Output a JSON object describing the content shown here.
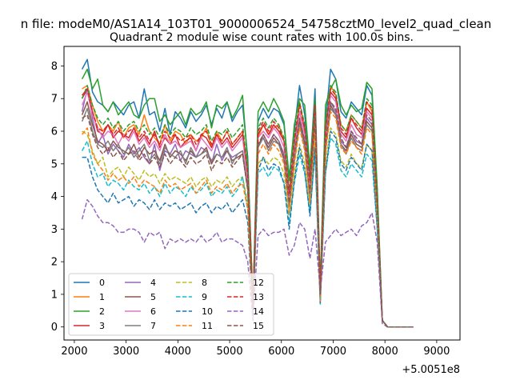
{
  "chart_data": {
    "type": "line",
    "suptitle": "n file: modeM0/AS1A14_103T01_9000006524_54758cztM0_level2_quad_clean",
    "title": "Quadrant 2 module wise count rates with 100.0s bins.",
    "xlabel": "",
    "ylabel": "",
    "x_offset_label": "+5.0051e8",
    "xlim": [
      1800,
      9450
    ],
    "ylim": [
      -0.4,
      8.6
    ],
    "x_ticks": [
      2000,
      3000,
      4000,
      5000,
      6000,
      7000,
      8000,
      9000
    ],
    "y_ticks": [
      0,
      1,
      2,
      3,
      4,
      5,
      6,
      7,
      8
    ],
    "grid": false,
    "legend": {
      "position": "lower-left",
      "ncol": 4
    },
    "x_start": 2150,
    "x_step": 100,
    "series": [
      {
        "name": "0",
        "color": "#1f77b4",
        "style": "solid",
        "values": [
          7.9,
          8.2,
          7.2,
          6.9,
          6.8,
          6.6,
          6.9,
          6.7,
          6.5,
          6.8,
          6.9,
          6.4,
          7.3,
          6.5,
          6.6,
          6.0,
          6.7,
          5.9,
          6.6,
          6.4,
          6.1,
          6.6,
          6.3,
          6.5,
          6.8,
          6.2,
          6.7,
          6.4,
          6.9,
          6.3,
          6.6,
          6.8,
          5.2,
          0.7,
          6.3,
          6.7,
          6.4,
          6.7,
          6.6,
          6.2,
          4.6,
          6.0,
          7.4,
          6.5,
          4.8,
          7.3,
          1.2,
          6.3,
          7.9,
          7.6,
          6.6,
          6.4,
          6.9,
          6.7,
          6.5,
          7.4,
          7.1,
          4.2,
          0.2,
          0.0,
          0.0,
          0.0,
          0.0,
          0.0,
          0.0
        ]
      },
      {
        "name": "1",
        "color": "#ff7f0e",
        "style": "solid",
        "values": [
          7.3,
          7.4,
          6.8,
          6.3,
          6.0,
          6.2,
          6.0,
          6.3,
          5.8,
          6.1,
          6.2,
          5.9,
          6.5,
          6.0,
          5.8,
          5.6,
          6.2,
          5.7,
          6.0,
          5.9,
          5.6,
          5.9,
          5.7,
          5.8,
          6.1,
          5.5,
          6.0,
          5.7,
          6.0,
          5.6,
          5.8,
          6.0,
          4.8,
          0.6,
          5.8,
          6.2,
          5.9,
          6.1,
          6.2,
          5.7,
          4.1,
          5.6,
          6.9,
          6.1,
          4.4,
          6.8,
          1.0,
          5.9,
          7.4,
          7.1,
          6.2,
          6.0,
          6.5,
          6.3,
          6.1,
          6.9,
          6.6,
          3.9,
          0.2,
          0.0,
          0.0,
          0.0,
          0.0,
          0.0,
          0.0
        ]
      },
      {
        "name": "2",
        "color": "#2ca02c",
        "style": "solid",
        "values": [
          7.6,
          7.9,
          7.3,
          7.6,
          6.8,
          6.6,
          6.9,
          6.5,
          6.7,
          6.9,
          6.5,
          6.4,
          6.8,
          7.0,
          7.0,
          6.3,
          6.5,
          6.2,
          6.4,
          6.6,
          6.2,
          6.7,
          6.5,
          6.6,
          6.9,
          6.1,
          6.8,
          6.7,
          6.9,
          6.4,
          6.7,
          7.1,
          5.0,
          0.8,
          6.6,
          6.9,
          6.6,
          7.0,
          6.7,
          6.3,
          4.5,
          6.2,
          7.0,
          6.8,
          4.9,
          7.0,
          1.3,
          6.8,
          7.3,
          7.6,
          6.8,
          6.5,
          6.8,
          6.6,
          6.7,
          7.5,
          7.3,
          4.3,
          0.2,
          0.0,
          0.0,
          0.0,
          0.0,
          0.0,
          0.0
        ]
      },
      {
        "name": "3",
        "color": "#d62728",
        "style": "solid",
        "values": [
          7.0,
          7.3,
          6.6,
          6.0,
          5.9,
          6.2,
          5.8,
          6.0,
          5.9,
          5.8,
          6.1,
          5.7,
          5.9,
          5.6,
          6.0,
          5.5,
          5.8,
          5.6,
          5.9,
          5.5,
          5.7,
          5.8,
          5.4,
          5.9,
          5.8,
          5.5,
          5.9,
          5.6,
          5.8,
          5.5,
          5.7,
          5.9,
          4.6,
          0.6,
          5.9,
          6.2,
          5.9,
          6.2,
          6.0,
          5.7,
          4.0,
          5.5,
          6.6,
          6.0,
          4.4,
          6.6,
          1.0,
          5.9,
          7.2,
          7.0,
          6.0,
          5.8,
          6.4,
          6.1,
          5.9,
          6.7,
          6.5,
          3.8,
          0.2,
          0.0,
          0.0,
          0.0,
          0.0,
          0.0,
          0.0
        ]
      },
      {
        "name": "4",
        "color": "#9467bd",
        "style": "solid",
        "values": [
          6.6,
          7.3,
          6.4,
          5.6,
          5.9,
          5.3,
          5.6,
          5.4,
          5.2,
          5.6,
          5.3,
          5.5,
          5.2,
          5.0,
          5.6,
          4.8,
          5.4,
          5.3,
          5.6,
          5.1,
          5.4,
          5.3,
          5.2,
          5.5,
          5.4,
          5.0,
          5.6,
          5.1,
          5.4,
          5.2,
          5.3,
          5.4,
          4.3,
          0.5,
          5.5,
          5.9,
          5.6,
          5.9,
          5.7,
          5.3,
          3.8,
          5.2,
          6.4,
          5.7,
          4.1,
          6.4,
          0.9,
          5.6,
          6.9,
          6.6,
          5.7,
          5.5,
          6.0,
          5.7,
          5.6,
          6.4,
          6.2,
          3.6,
          0.2,
          0.0,
          0.0,
          0.0,
          0.0,
          0.0,
          0.0
        ]
      },
      {
        "name": "5",
        "color": "#8c564b",
        "style": "solid",
        "values": [
          6.5,
          6.9,
          6.2,
          5.7,
          5.6,
          5.4,
          5.7,
          5.5,
          5.4,
          5.3,
          5.6,
          5.2,
          5.5,
          5.3,
          5.4,
          5.1,
          5.6,
          5.2,
          5.4,
          5.3,
          5.1,
          5.4,
          5.2,
          5.3,
          5.5,
          5.0,
          5.3,
          5.2,
          5.4,
          5.1,
          5.2,
          5.3,
          4.2,
          0.5,
          5.6,
          5.8,
          5.5,
          5.8,
          5.6,
          5.2,
          3.8,
          5.1,
          6.3,
          5.6,
          4.1,
          6.3,
          0.9,
          5.5,
          6.8,
          6.5,
          5.6,
          5.4,
          5.9,
          5.6,
          5.5,
          6.3,
          6.1,
          3.5,
          0.2,
          0.0,
          0.0,
          0.0,
          0.0,
          0.0,
          0.0
        ]
      },
      {
        "name": "6",
        "color": "#e377c2",
        "style": "solid",
        "values": [
          6.8,
          7.2,
          6.5,
          6.1,
          5.8,
          6.0,
          5.9,
          5.6,
          5.9,
          5.7,
          6.0,
          5.6,
          5.8,
          5.5,
          5.7,
          5.4,
          5.9,
          5.6,
          5.7,
          5.5,
          5.6,
          5.7,
          5.4,
          5.8,
          5.6,
          5.4,
          5.8,
          5.5,
          5.7,
          5.4,
          5.6,
          5.8,
          4.5,
          0.6,
          5.8,
          6.0,
          5.8,
          6.1,
          5.9,
          5.5,
          3.9,
          5.4,
          6.6,
          5.9,
          4.3,
          6.5,
          1.0,
          5.7,
          7.1,
          6.9,
          5.9,
          5.7,
          6.2,
          5.9,
          5.8,
          6.6,
          6.4,
          3.8,
          0.2,
          0.0,
          0.0,
          0.0,
          0.0,
          0.0,
          0.0
        ]
      },
      {
        "name": "7",
        "color": "#7f7f7f",
        "style": "solid",
        "values": [
          6.3,
          6.7,
          6.0,
          5.6,
          5.5,
          5.7,
          5.4,
          5.6,
          5.3,
          5.5,
          5.2,
          5.4,
          5.6,
          5.1,
          5.3,
          5.0,
          5.5,
          5.3,
          5.2,
          5.4,
          5.0,
          5.5,
          5.2,
          5.3,
          5.4,
          5.1,
          5.3,
          5.2,
          5.5,
          5.0,
          5.3,
          5.4,
          4.2,
          0.5,
          5.5,
          5.8,
          5.4,
          5.7,
          5.6,
          5.1,
          3.7,
          5.1,
          6.2,
          5.5,
          4.0,
          6.2,
          0.9,
          5.4,
          6.7,
          6.5,
          5.6,
          5.3,
          5.8,
          5.5,
          5.4,
          6.2,
          6.0,
          3.5,
          0.2,
          0.0,
          0.0,
          0.0,
          0.0,
          0.0,
          0.0
        ]
      },
      {
        "name": "8",
        "color": "#bcbd22",
        "style": "dashed",
        "values": [
          6.0,
          5.9,
          5.4,
          5.0,
          5.2,
          4.6,
          4.8,
          4.9,
          4.6,
          4.9,
          4.7,
          4.5,
          4.8,
          4.6,
          4.7,
          4.4,
          4.7,
          4.5,
          4.6,
          4.5,
          4.4,
          4.6,
          4.3,
          4.5,
          4.6,
          4.3,
          4.5,
          4.4,
          4.6,
          4.3,
          4.5,
          4.6,
          3.8,
          0.4,
          5.0,
          5.2,
          5.0,
          5.2,
          5.1,
          4.7,
          3.4,
          4.7,
          5.6,
          5.0,
          3.7,
          5.6,
          0.8,
          5.0,
          6.1,
          5.9,
          5.1,
          4.9,
          5.3,
          5.0,
          4.9,
          5.6,
          5.4,
          3.2,
          0.2,
          0.0,
          0.0,
          0.0,
          0.0,
          0.0,
          0.0
        ]
      },
      {
        "name": "9",
        "color": "#17becf",
        "style": "dashed",
        "values": [
          5.4,
          5.7,
          5.0,
          4.6,
          4.7,
          4.3,
          4.5,
          4.4,
          4.2,
          4.5,
          4.3,
          4.2,
          4.4,
          4.1,
          4.3,
          4.0,
          4.4,
          4.1,
          4.3,
          4.2,
          4.0,
          4.3,
          4.1,
          4.2,
          4.4,
          4.0,
          4.2,
          4.1,
          4.3,
          4.0,
          4.2,
          4.6,
          3.6,
          0.4,
          4.7,
          4.9,
          4.6,
          4.9,
          4.8,
          4.4,
          3.2,
          4.4,
          5.3,
          4.7,
          3.5,
          5.3,
          0.7,
          4.7,
          5.8,
          5.6,
          4.8,
          4.6,
          5.0,
          4.8,
          4.6,
          5.3,
          5.1,
          3.0,
          0.2,
          0.0,
          0.0,
          0.0,
          0.0,
          0.0,
          0.0
        ]
      },
      {
        "name": "10",
        "color": "#1f77b4",
        "style": "dashed",
        "values": [
          5.2,
          5.2,
          4.6,
          4.2,
          4.0,
          3.8,
          4.1,
          3.8,
          3.9,
          4.0,
          3.7,
          3.9,
          3.8,
          3.6,
          3.9,
          3.6,
          3.8,
          3.7,
          3.8,
          3.6,
          3.7,
          3.8,
          3.5,
          3.7,
          3.8,
          3.5,
          3.7,
          3.6,
          3.8,
          3.5,
          3.7,
          3.9,
          3.2,
          0.3,
          4.8,
          5.2,
          4.8,
          5.0,
          4.9,
          4.4,
          3.0,
          4.5,
          5.5,
          4.8,
          3.4,
          5.5,
          0.7,
          4.7,
          6.0,
          5.8,
          5.0,
          4.8,
          5.2,
          5.0,
          4.8,
          5.6,
          5.4,
          3.1,
          0.2,
          0.0,
          0.0,
          0.0,
          0.0,
          0.0,
          0.0
        ]
      },
      {
        "name": "11",
        "color": "#ff7f0e",
        "style": "dashed",
        "values": [
          5.9,
          6.1,
          5.3,
          5.0,
          4.8,
          4.5,
          4.7,
          4.5,
          4.6,
          4.4,
          4.6,
          4.3,
          4.5,
          4.4,
          4.3,
          4.1,
          4.5,
          4.3,
          4.4,
          4.2,
          4.3,
          4.4,
          4.1,
          4.3,
          4.5,
          4.1,
          4.3,
          4.2,
          4.4,
          4.1,
          4.3,
          4.4,
          3.6,
          0.4,
          5.3,
          5.6,
          5.3,
          5.6,
          5.4,
          5.0,
          3.5,
          5.0,
          6.1,
          5.4,
          3.8,
          6.1,
          0.8,
          5.3,
          6.6,
          6.4,
          5.5,
          5.3,
          5.7,
          5.5,
          5.3,
          6.1,
          5.9,
          3.4,
          0.2,
          0.0,
          0.0,
          0.0,
          0.0,
          0.0,
          0.0
        ]
      },
      {
        "name": "12",
        "color": "#2ca02c",
        "style": "dashed",
        "values": [
          7.0,
          7.4,
          6.8,
          6.4,
          6.2,
          6.4,
          6.1,
          6.3,
          6.0,
          6.2,
          6.3,
          6.0,
          6.2,
          5.9,
          6.1,
          5.8,
          6.2,
          5.9,
          6.1,
          6.0,
          5.8,
          6.1,
          5.9,
          6.0,
          6.2,
          5.7,
          6.0,
          5.9,
          6.1,
          5.8,
          6.0,
          6.2,
          4.8,
          0.7,
          6.1,
          6.4,
          6.1,
          6.4,
          6.2,
          5.8,
          4.2,
          5.8,
          6.9,
          6.2,
          4.6,
          6.9,
          1.1,
          6.2,
          7.4,
          7.2,
          6.2,
          6.0,
          6.5,
          6.3,
          6.1,
          7.0,
          6.8,
          4.0,
          0.2,
          0.0,
          0.0,
          0.0,
          0.0,
          0.0,
          0.0
        ]
      },
      {
        "name": "13",
        "color": "#d62728",
        "style": "dashed",
        "values": [
          7.1,
          7.3,
          6.6,
          6.1,
          6.0,
          6.2,
          5.9,
          6.1,
          5.8,
          6.0,
          6.1,
          5.8,
          6.0,
          5.7,
          5.9,
          5.6,
          6.0,
          5.8,
          5.9,
          5.7,
          5.8,
          5.9,
          5.6,
          5.9,
          6.0,
          5.6,
          5.9,
          5.7,
          6.0,
          5.6,
          5.8,
          6.0,
          4.7,
          0.6,
          6.0,
          6.3,
          6.0,
          6.3,
          6.1,
          5.7,
          4.1,
          5.7,
          6.8,
          6.1,
          4.5,
          6.8,
          1.1,
          6.0,
          7.3,
          7.1,
          6.1,
          5.9,
          6.4,
          6.2,
          6.0,
          6.9,
          6.7,
          3.9,
          0.2,
          0.0,
          0.0,
          0.0,
          0.0,
          0.0,
          0.0
        ]
      },
      {
        "name": "14",
        "color": "#9467bd",
        "style": "dashed",
        "values": [
          3.3,
          3.9,
          3.7,
          3.4,
          3.2,
          3.2,
          3.1,
          2.9,
          2.9,
          3.0,
          3.0,
          2.9,
          2.6,
          2.9,
          2.8,
          2.9,
          2.4,
          2.7,
          2.6,
          2.7,
          2.6,
          2.7,
          2.6,
          2.8,
          2.6,
          2.7,
          2.9,
          2.6,
          2.7,
          2.7,
          2.6,
          2.5,
          2.0,
          0.2,
          2.8,
          3.0,
          2.8,
          2.9,
          2.9,
          3.0,
          2.2,
          2.5,
          3.2,
          3.0,
          2.1,
          3.0,
          1.1,
          2.6,
          2.8,
          3.0,
          2.8,
          2.9,
          3.0,
          2.8,
          3.1,
          3.2,
          3.5,
          2.6,
          0.1,
          0.0,
          0.0,
          0.0,
          0.0,
          0.0,
          0.0
        ]
      },
      {
        "name": "15",
        "color": "#8c564b",
        "style": "dashed",
        "values": [
          6.4,
          6.5,
          5.9,
          5.5,
          5.3,
          5.5,
          5.2,
          5.4,
          5.1,
          5.3,
          5.4,
          5.1,
          5.3,
          5.0,
          5.2,
          4.9,
          5.3,
          5.0,
          5.2,
          5.1,
          4.9,
          5.2,
          5.0,
          5.1,
          5.3,
          4.8,
          5.1,
          5.0,
          5.2,
          4.9,
          5.1,
          5.3,
          4.2,
          0.5,
          5.6,
          5.9,
          5.6,
          5.9,
          5.7,
          5.2,
          3.8,
          5.3,
          6.4,
          5.7,
          4.1,
          6.4,
          1.0,
          5.6,
          6.9,
          6.7,
          5.8,
          5.5,
          6.0,
          5.8,
          5.6,
          6.5,
          6.3,
          3.7,
          0.2,
          0.0,
          0.0,
          0.0,
          0.0,
          0.0,
          0.0
        ]
      }
    ]
  }
}
